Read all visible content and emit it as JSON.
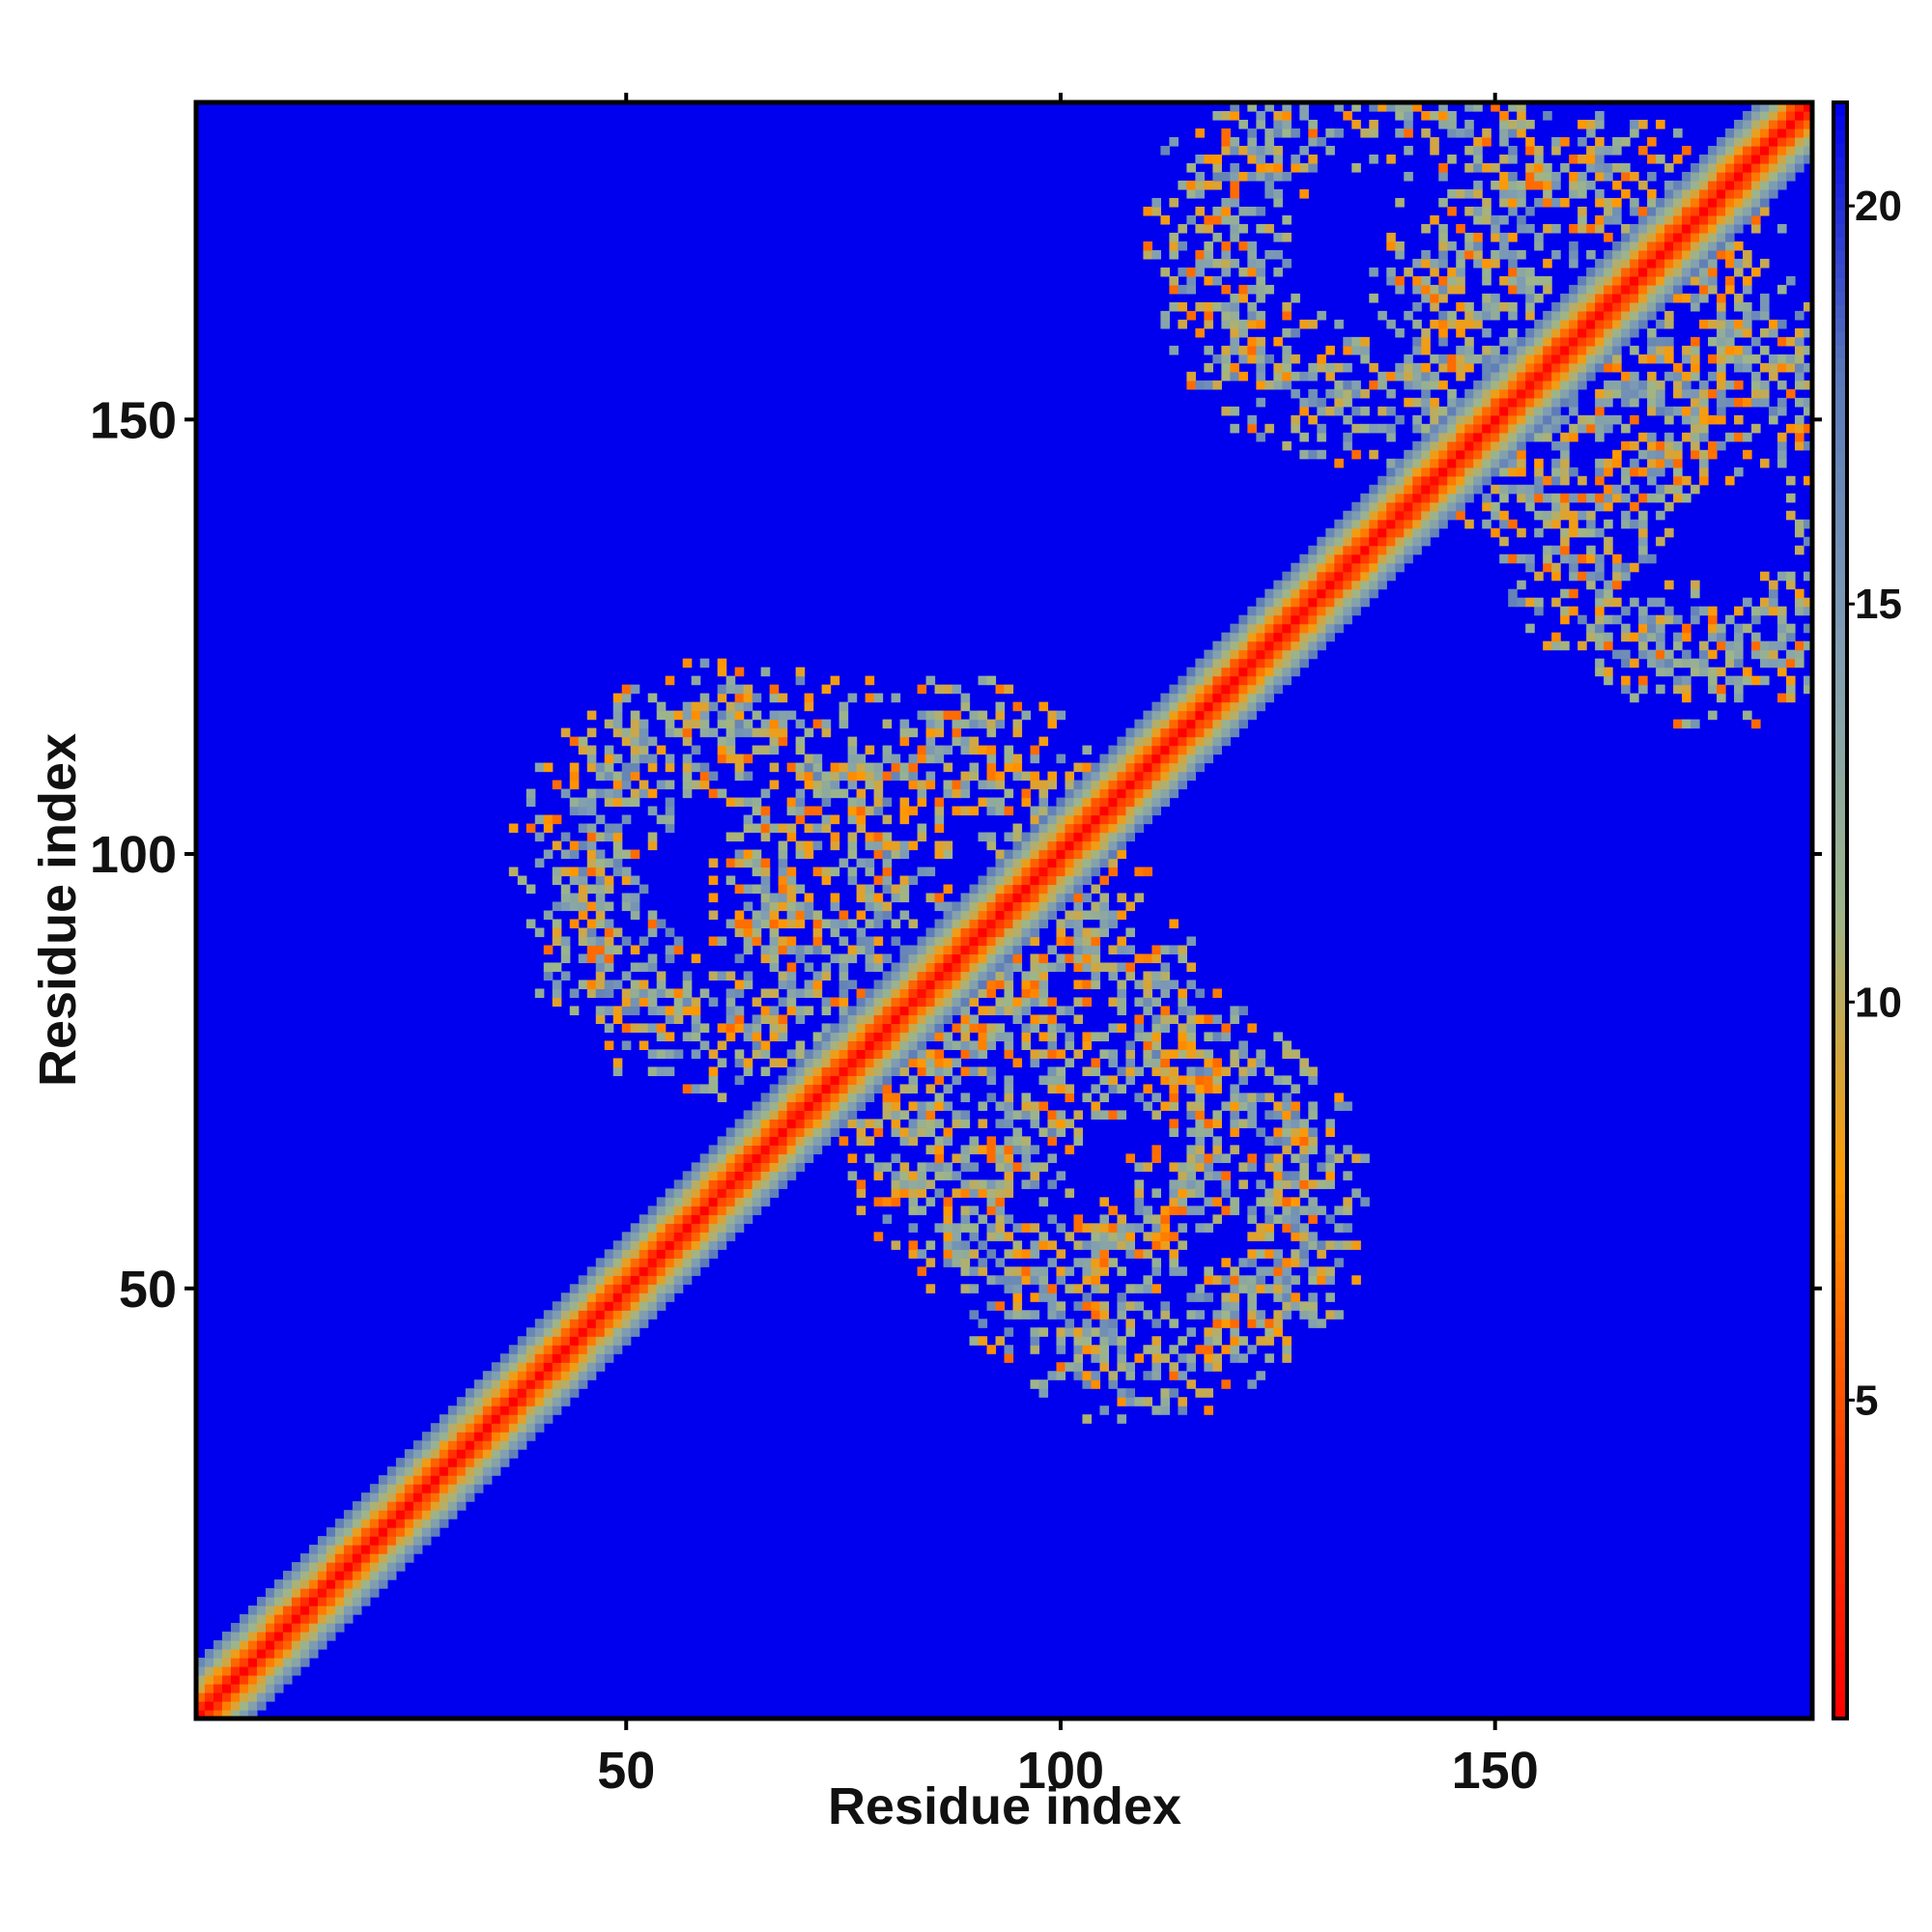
{
  "chart_data": {
    "type": "heatmap",
    "title": "",
    "xlabel": "Residue index",
    "ylabel": "Residue index",
    "xlim": [
      1,
      186
    ],
    "ylim": [
      1,
      186
    ],
    "n_residues": 186,
    "x_ticks": [
      "50",
      "100",
      "150"
    ],
    "y_ticks": [
      "50",
      "100",
      "150"
    ],
    "x_tick_values": [
      50,
      100,
      150
    ],
    "y_tick_values": [
      50,
      100,
      150
    ],
    "colorbar": {
      "range": [
        1,
        21.3
      ],
      "tick_labels": [
        "5",
        "10",
        "15",
        "20"
      ],
      "tick_values": [
        5,
        10,
        15,
        20
      ],
      "colors": [
        "#ff0000",
        "#ff4000",
        "#ff9900",
        "#9db58a",
        "#7f9db3",
        "#5a78b8",
        "#0000ee"
      ],
      "legend_position": "right"
    },
    "background_value": 21.3,
    "diagonal": {
      "core_value": 1,
      "band_values_by_offset": [
        1,
        4,
        6,
        9,
        11,
        14,
        17
      ]
    },
    "contact_regions": [
      {
        "center_x": 62,
        "center_y": 97,
        "value": 12
      },
      {
        "center_x": 110,
        "center_y": 60,
        "value": 12
      },
      {
        "center_x": 85,
        "center_y": 95,
        "value": 11
      },
      {
        "center_x": 100,
        "center_y": 70,
        "value": 11
      },
      {
        "center_x": 135,
        "center_y": 170,
        "value": 12
      },
      {
        "center_x": 175,
        "center_y": 140,
        "value": 12
      },
      {
        "center_x": 160,
        "center_y": 160,
        "value": 11
      }
    ]
  }
}
